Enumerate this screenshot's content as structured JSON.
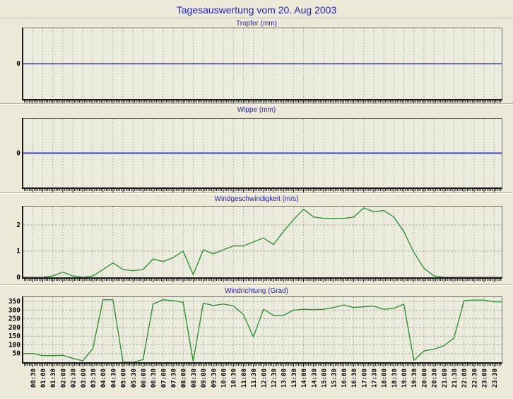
{
  "window": {
    "title": "Tagesauswertung vom 20. Aug 2003"
  },
  "colors": {
    "page_bg": "#ECE9D8",
    "plot_bg": "#EBEBDE",
    "title_blue": "#2222C8",
    "grid": "#A8A89A",
    "axis_dark": "#1a1a1a",
    "axis_light": "#6e6e6e",
    "tropfer_line": "#2424A8",
    "wippe_line": "#5050D8",
    "wind_green": "#2E9532",
    "label_text": "#000000"
  },
  "x_categories": [
    "00:30",
    "01:00",
    "01:30",
    "02:00",
    "02:30",
    "03:00",
    "03:30",
    "04:00",
    "04:30",
    "05:00",
    "05:30",
    "06:00",
    "06:30",
    "07:00",
    "07:30",
    "08:00",
    "08:30",
    "09:00",
    "09:30",
    "10:00",
    "10:30",
    "11:00",
    "11:30",
    "12:00",
    "12:30",
    "13:00",
    "13:30",
    "14:00",
    "14:30",
    "15:00",
    "15:30",
    "16:00",
    "16:30",
    "17:00",
    "17:30",
    "18:00",
    "18:30",
    "19:00",
    "19:30",
    "20:00",
    "20:30",
    "21:00",
    "21:30",
    "22:00",
    "22:30",
    "23:00",
    "23:30"
  ],
  "chart_data": [
    {
      "type": "line",
      "title": "Tropfer (mm)",
      "ylim": [
        -1,
        1
      ],
      "ytick_labels": [
        0
      ],
      "grid_yticks": [],
      "line_color": "#2424A8",
      "line_width": 1.2,
      "values": [
        0,
        0,
        0,
        0,
        0,
        0,
        0,
        0,
        0,
        0,
        0,
        0,
        0,
        0,
        0,
        0,
        0,
        0,
        0,
        0,
        0,
        0,
        0,
        0,
        0,
        0,
        0,
        0,
        0,
        0,
        0,
        0,
        0,
        0,
        0,
        0,
        0,
        0,
        0,
        0,
        0,
        0,
        0,
        0,
        0,
        0,
        0
      ]
    },
    {
      "type": "line",
      "title": "Wippe (mm)",
      "ylim": [
        -1,
        1
      ],
      "ytick_labels": [
        0
      ],
      "grid_yticks": [],
      "line_color": "#5050D8",
      "line_width": 2.2,
      "values": [
        0,
        0,
        0,
        0,
        0,
        0,
        0,
        0,
        0,
        0,
        0,
        0,
        0,
        0,
        0,
        0,
        0,
        0,
        0,
        0,
        0,
        0,
        0,
        0,
        0,
        0,
        0,
        0,
        0,
        0,
        0,
        0,
        0,
        0,
        0,
        0,
        0,
        0,
        0,
        0,
        0,
        0,
        0,
        0,
        0,
        0,
        0
      ]
    },
    {
      "type": "line",
      "title": "Windgeschwindigkeit (m/s)",
      "ylim": [
        0,
        2.7
      ],
      "ytick_labels": [
        0,
        1,
        2
      ],
      "grid_yticks": [
        1,
        2
      ],
      "line_color": "#2E9532",
      "line_width": 1.4,
      "values": [
        0,
        0,
        0.05,
        0.2,
        0.05,
        0,
        0.05,
        0.3,
        0.55,
        0.3,
        0.25,
        0.3,
        0.7,
        0.6,
        0.75,
        1.0,
        0.1,
        1.05,
        0.9,
        1.05,
        1.2,
        1.2,
        1.35,
        1.5,
        1.25,
        1.75,
        2.2,
        2.6,
        2.3,
        2.25,
        2.25,
        2.25,
        2.3,
        2.65,
        2.5,
        2.55,
        2.3,
        1.75,
        0.95,
        0.35,
        0.05,
        0,
        0,
        0,
        0,
        0,
        0
      ]
    },
    {
      "type": "line",
      "title": "Windrichtung (Grad)",
      "ylim": [
        0,
        375
      ],
      "ytick_labels": [
        50,
        100,
        150,
        200,
        250,
        300,
        350
      ],
      "grid_yticks": [
        50,
        100,
        150,
        200,
        250,
        300,
        350
      ],
      "line_color": "#2E9532",
      "line_width": 1.4,
      "values": [
        50,
        38,
        38,
        40,
        22,
        8,
        80,
        360,
        360,
        0,
        0,
        15,
        335,
        360,
        355,
        345,
        5,
        340,
        327,
        335,
        325,
        275,
        145,
        305,
        270,
        270,
        300,
        305,
        303,
        305,
        315,
        330,
        315,
        320,
        323,
        305,
        310,
        335,
        10,
        65,
        75,
        95,
        140,
        355,
        358,
        358,
        348
      ]
    }
  ]
}
